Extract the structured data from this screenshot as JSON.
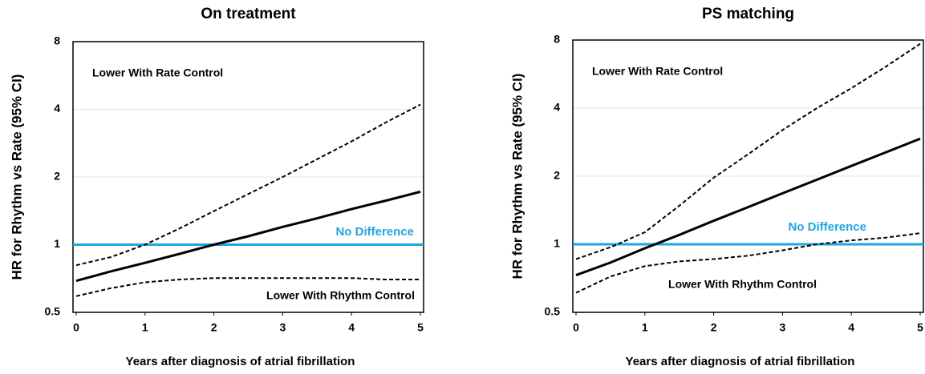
{
  "chart_data": [
    {
      "type": "line",
      "title": "On treatment",
      "y_label": "HR for Rhythm vs Rate (95% CI)",
      "x_label": "Years after diagnosis of atrial fibrillation",
      "y_scale": "log",
      "grid": true,
      "x": [
        0,
        0.5,
        1,
        1.5,
        2,
        2.5,
        3,
        3.5,
        4,
        4.5,
        5
      ],
      "series": [
        {
          "color": "#000000",
          "style": "solid",
          "values": [
            0.69,
            0.76,
            0.83,
            0.91,
            1.0,
            1.09,
            1.2,
            1.31,
            1.44,
            1.57,
            1.72
          ]
        },
        {
          "color": "#000000",
          "style": "dashed",
          "values": [
            0.81,
            0.88,
            1.0,
            1.18,
            1.41,
            1.68,
            2.0,
            2.4,
            2.88,
            3.5,
            4.2
          ]
        },
        {
          "color": "#000000",
          "style": "dashed",
          "values": [
            0.59,
            0.64,
            0.68,
            0.7,
            0.71,
            0.71,
            0.71,
            0.71,
            0.71,
            0.7,
            0.7
          ]
        }
      ],
      "reference_line": {
        "value": 1,
        "color": "#1fa6e0",
        "label": "No Difference"
      },
      "annotations": [
        "Lower With Rate Control",
        "Lower With Rhythm Control"
      ],
      "xlim": [
        0,
        5
      ],
      "xticks": [
        0,
        1,
        2,
        3,
        4,
        5
      ],
      "ylim": [
        0.5,
        8
      ],
      "yticks": [
        0.5,
        1,
        2,
        4,
        8
      ]
    },
    {
      "type": "line",
      "title": "PS matching",
      "y_label": "HR for Rhythm vs Rate (95% CI)",
      "x_label": "Years after diagnosis of atrial fibrillation",
      "y_scale": "log",
      "grid": true,
      "x": [
        0,
        0.5,
        1,
        1.5,
        2,
        2.5,
        3,
        3.5,
        4,
        4.5,
        5
      ],
      "series": [
        {
          "color": "#000000",
          "style": "solid",
          "values": [
            0.73,
            0.83,
            0.96,
            1.1,
            1.27,
            1.46,
            1.68,
            1.93,
            2.22,
            2.55,
            2.93
          ]
        },
        {
          "color": "#000000",
          "style": "dashed",
          "values": [
            0.86,
            0.97,
            1.13,
            1.48,
            1.97,
            2.5,
            3.2,
            4.0,
            4.9,
            6.1,
            7.7
          ]
        },
        {
          "color": "#000000",
          "style": "dashed",
          "values": [
            0.61,
            0.72,
            0.8,
            0.84,
            0.86,
            0.89,
            0.94,
            1.0,
            1.04,
            1.07,
            1.12
          ]
        }
      ],
      "reference_line": {
        "value": 1,
        "color": "#1fa6e0",
        "label": "No Difference"
      },
      "annotations": [
        "Lower With Rate Control",
        "Lower With Rhythm Control"
      ],
      "xlim": [
        0,
        5
      ],
      "xticks": [
        0,
        1,
        2,
        3,
        4,
        5
      ],
      "ylim": [
        0.5,
        8
      ],
      "yticks": [
        0.5,
        1,
        2,
        4,
        8
      ]
    }
  ]
}
